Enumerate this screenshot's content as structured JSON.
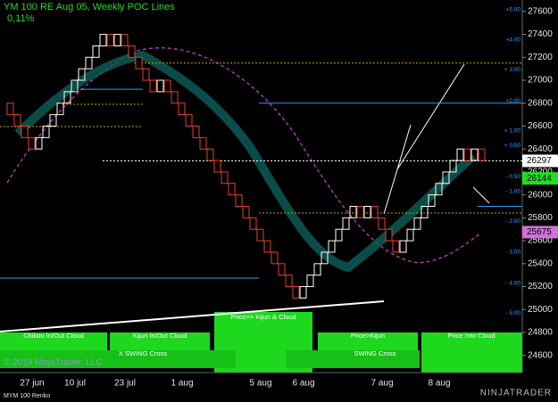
{
  "chart_data": {
    "type": "renko",
    "title": "YM 100 RE Aug 05, Weekly POC Lines",
    "subtitle": "0,11%",
    "categories": [
      null,
      null,
      null,
      "27 jun",
      null,
      null,
      null,
      null,
      null,
      "10 jul",
      null,
      null,
      null,
      null,
      null,
      null,
      "23 jul",
      null,
      null,
      null,
      null,
      null,
      null,
      null,
      "1 aug",
      null,
      null,
      null,
      null,
      null,
      null,
      null,
      null,
      null,
      null,
      "5 aug",
      null,
      null,
      null,
      null,
      null,
      "6 aug",
      null,
      null,
      null,
      null,
      null,
      null,
      null,
      null,
      null,
      null,
      "7 aug",
      null,
      null,
      null,
      null,
      null,
      null,
      null,
      "8 aug",
      null,
      null,
      null,
      null,
      null,
      null
    ],
    "series": [
      {
        "name": "MYM 100 Renko",
        "up_color": "#ffffff",
        "down_color": "#e8402a",
        "values": [
          26700,
          26600,
          26500,
          26400,
          26500,
          26600,
          26700,
          26800,
          26900,
          27000,
          27100,
          27200,
          27300,
          27400,
          27300,
          27400,
          27300,
          27200,
          27100,
          27000,
          26900,
          27000,
          26900,
          26800,
          26700,
          26600,
          26500,
          26400,
          26300,
          26200,
          26100,
          26000,
          25900,
          25800,
          25700,
          25600,
          25500,
          25400,
          25300,
          25200,
          25100,
          25200,
          25300,
          25400,
          25500,
          25600,
          25700,
          25800,
          25900,
          25800,
          25900,
          25800,
          25700,
          25600,
          25500,
          25600,
          25700,
          25800,
          25900,
          26000,
          26100,
          26200,
          26300,
          26400,
          26300,
          26400,
          26300
        ]
      }
    ],
    "ylim": [
      24450,
      27700
    ],
    "yticks": [
      24600,
      24800,
      25000,
      25200,
      25400,
      25600,
      25800,
      26000,
      26200,
      26400,
      26600,
      26800,
      27000,
      27200,
      27400,
      27600
    ],
    "level_labels": [
      {
        "value": 27615,
        "label": "+5.00"
      },
      {
        "value": 27350,
        "label": "+4.00"
      },
      {
        "value": 27090,
        "label": "+ 3.00"
      },
      {
        "value": 26820,
        "label": "+2.00"
      },
      {
        "value": 26560,
        "label": "+ 1.00"
      },
      {
        "value": 26430,
        "label": "+ 0.50"
      },
      {
        "value": 26160,
        "label": "- 0.50"
      },
      {
        "value": 26030,
        "label": "- 1.00"
      },
      {
        "value": 25770,
        "label": "- 2.00"
      },
      {
        "value": 25500,
        "label": "- 3.00"
      },
      {
        "value": 25230,
        "label": "- 4.00"
      },
      {
        "value": 24970,
        "label": "- 5.00"
      }
    ],
    "price_markers": [
      {
        "value": 26297,
        "color": "#ffffff"
      },
      {
        "value": 26144,
        "color": "#22dd22"
      },
      {
        "value": 25675,
        "color": "#d070d8"
      }
    ],
    "lines": [
      {
        "value": 26297,
        "color": "#ffffff"
      },
      {
        "value": 27150,
        "color": "#c8a000"
      },
      {
        "value": 26800,
        "color": "#3399ff"
      },
      {
        "value": 25842,
        "color": "#c8a000"
      },
      {
        "value": 26596,
        "color": "#c8a000"
      },
      {
        "value": 26790,
        "color": "#c8a000"
      },
      {
        "value": 26922,
        "color": "#3399ff"
      },
      {
        "value": 25274,
        "color": "#3399ff"
      },
      {
        "value": 25900,
        "color": "#3399ff"
      }
    ],
    "signals": [
      "Chikou In/Out Cloud",
      "Kijun In/Out Cloud",
      "Price>> Kijun & Cloud",
      "Price>Kijun",
      "Price Into Cloud",
      "X SWING Cross",
      "SWING Cross"
    ],
    "copyright": "© 2019 NinjaTrader, LLC",
    "brand": "NINJATRADER"
  }
}
